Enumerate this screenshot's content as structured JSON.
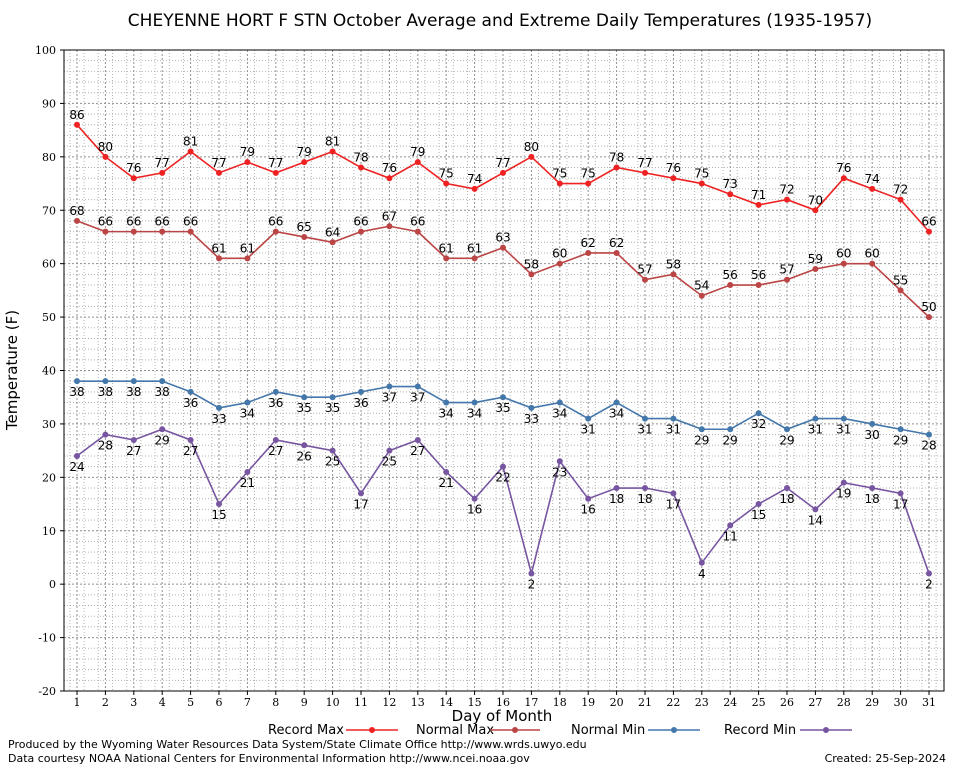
{
  "chart_data": {
    "type": "line",
    "title": "CHEYENNE HORT F STN October Average and Extreme Daily Temperatures (1935-1957)",
    "xlabel": "Day of Month",
    "ylabel": "Temperature (F)",
    "ylim": [
      -20,
      100
    ],
    "yticks": [
      -20,
      -10,
      0,
      10,
      20,
      30,
      40,
      50,
      60,
      70,
      80,
      90,
      100
    ],
    "x": [
      1,
      2,
      3,
      4,
      5,
      6,
      7,
      8,
      9,
      10,
      11,
      12,
      13,
      14,
      15,
      16,
      17,
      18,
      19,
      20,
      21,
      22,
      23,
      24,
      25,
      26,
      27,
      28,
      29,
      30,
      31
    ],
    "grid": true,
    "legend_position": "bottom",
    "series": [
      {
        "name": "Record Max",
        "color": "#ee2222",
        "label_position": "above",
        "values": [
          86,
          80,
          76,
          77,
          81,
          77,
          79,
          77,
          79,
          81,
          78,
          76,
          79,
          75,
          74,
          77,
          80,
          75,
          75,
          78,
          77,
          76,
          75,
          73,
          71,
          72,
          70,
          76,
          74,
          72,
          66
        ]
      },
      {
        "name": "Normal Max",
        "color": "#bb4444",
        "label_position": "above",
        "values": [
          68,
          66,
          66,
          66,
          66,
          61,
          61,
          66,
          65,
          64,
          66,
          67,
          66,
          61,
          61,
          63,
          58,
          60,
          62,
          62,
          57,
          58,
          54,
          56,
          56,
          57,
          59,
          60,
          60,
          55,
          50
        ]
      },
      {
        "name": "Normal Min",
        "color": "#4477aa",
        "label_position": "below",
        "values": [
          38,
          38,
          38,
          38,
          36,
          33,
          34,
          36,
          35,
          35,
          36,
          37,
          37,
          34,
          34,
          35,
          33,
          34,
          31,
          34,
          31,
          31,
          29,
          29,
          32,
          29,
          31,
          31,
          30,
          29,
          28
        ]
      },
      {
        "name": "Record Min",
        "color": "#7755a0",
        "label_position": "below",
        "values": [
          24,
          28,
          27,
          29,
          27,
          15,
          21,
          27,
          26,
          25,
          17,
          25,
          27,
          21,
          16,
          22,
          2,
          23,
          16,
          18,
          18,
          17,
          4,
          11,
          15,
          18,
          14,
          19,
          18,
          17,
          2
        ]
      }
    ]
  },
  "footer": {
    "credit_line1": "Produced by the Wyoming Water Resources Data System/State Climate Office http://www.wrds.uwyo.edu",
    "credit_line2": "Data courtesy NOAA National Centers for Environmental Information http://www.ncei.noaa.gov",
    "created": "Created: 25-Sep-2024"
  }
}
